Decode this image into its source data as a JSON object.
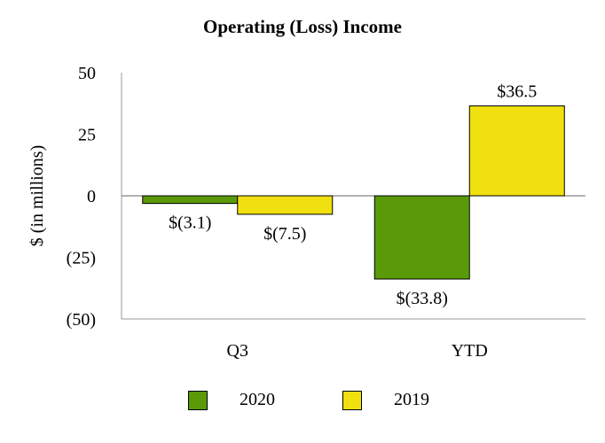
{
  "chart_data": {
    "type": "bar",
    "title": "Operating (Loss) Income",
    "ylabel": "$ (in millions)",
    "xlabel": "",
    "categories": [
      "Q3",
      "YTD"
    ],
    "series": [
      {
        "name": "2020",
        "color": "#5a9a08",
        "values": [
          -3.1,
          -33.8
        ],
        "labels": [
          "$(3.1)",
          "$(33.8)"
        ]
      },
      {
        "name": "2019",
        "color": "#f0e010",
        "values": [
          -7.5,
          36.5
        ],
        "labels": [
          "$(7.5)",
          "$36.5"
        ]
      }
    ],
    "ylim": [
      -50,
      50
    ],
    "yticks": [
      50,
      25,
      0,
      -25,
      -50
    ],
    "ytick_labels": [
      "50",
      "25",
      "0",
      "(25)",
      "(50)"
    ],
    "grid": false,
    "legend_position": "bottom"
  }
}
